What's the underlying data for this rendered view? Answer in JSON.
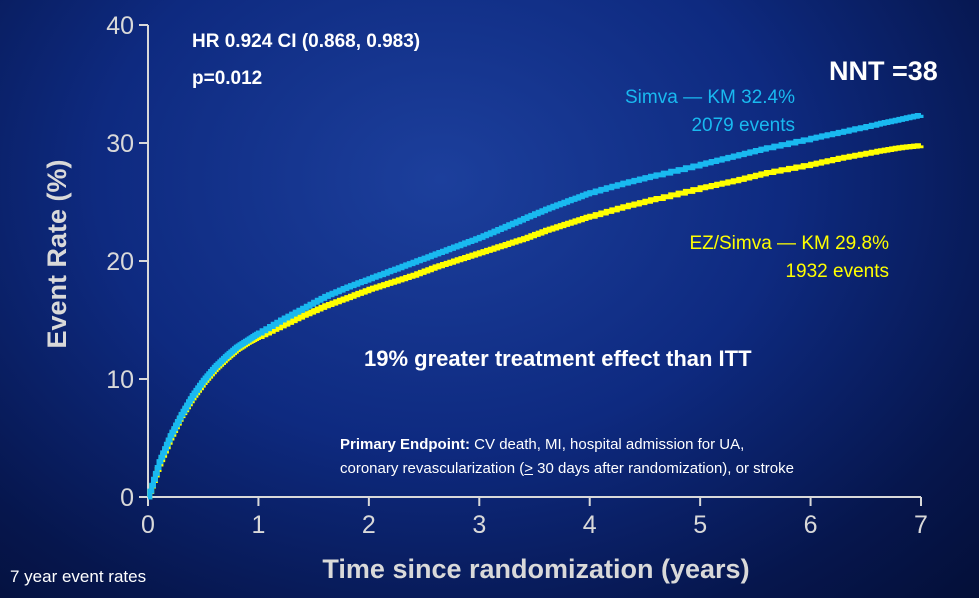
{
  "chart_data": {
    "type": "line",
    "title": "",
    "xlabel": "Time since randomization (years)",
    "ylabel": "Event Rate (%)",
    "xlim": [
      0,
      7
    ],
    "ylim": [
      0,
      40
    ],
    "xticks": [
      "0",
      "1",
      "2",
      "3",
      "4",
      "5",
      "6",
      "7"
    ],
    "yticks": [
      "0",
      "10",
      "20",
      "30",
      "40"
    ],
    "grid": false,
    "series": [
      {
        "name": "Simva",
        "color": "#19b9f0",
        "x": [
          0,
          0.1,
          0.2,
          0.3,
          0.4,
          0.5,
          0.6,
          0.7,
          0.8,
          0.9,
          1.0,
          1.2,
          1.4,
          1.6,
          1.8,
          2.0,
          2.2,
          2.4,
          2.6,
          2.8,
          3.0,
          3.2,
          3.4,
          3.6,
          3.8,
          4.0,
          4.3,
          4.6,
          5.0,
          5.3,
          5.6,
          6.0,
          6.3,
          6.6,
          6.8,
          7.0
        ],
        "y": [
          0,
          3.0,
          5.2,
          7.0,
          8.6,
          9.9,
          11.0,
          11.9,
          12.7,
          13.3,
          13.9,
          15.0,
          16.0,
          17.0,
          17.8,
          18.5,
          19.2,
          19.9,
          20.6,
          21.3,
          22.0,
          22.8,
          23.6,
          24.4,
          25.1,
          25.8,
          26.6,
          27.3,
          28.2,
          28.9,
          29.6,
          30.4,
          31.0,
          31.6,
          32.0,
          32.4
        ]
      },
      {
        "name": "EZ/Simva",
        "color": "#ffff00",
        "x": [
          0,
          0.1,
          0.2,
          0.3,
          0.4,
          0.5,
          0.6,
          0.7,
          0.8,
          0.9,
          1.0,
          1.2,
          1.4,
          1.6,
          1.8,
          2.0,
          2.2,
          2.4,
          2.6,
          2.8,
          3.0,
          3.2,
          3.4,
          3.6,
          3.8,
          4.0,
          4.3,
          4.6,
          5.0,
          5.3,
          5.6,
          6.0,
          6.3,
          6.6,
          6.8,
          7.0
        ],
        "y": [
          0,
          2.8,
          5.0,
          6.9,
          8.4,
          9.7,
          10.8,
          11.7,
          12.5,
          13.1,
          13.6,
          14.5,
          15.4,
          16.2,
          16.9,
          17.6,
          18.2,
          18.8,
          19.5,
          20.1,
          20.7,
          21.3,
          21.9,
          22.6,
          23.2,
          23.8,
          24.6,
          25.3,
          26.2,
          26.8,
          27.5,
          28.2,
          28.8,
          29.3,
          29.6,
          29.8
        ]
      }
    ],
    "annotations": {
      "hr": "HR 0.924 CI (0.868, 0.983)",
      "p": "p=0.012",
      "nnt": "NNT =38",
      "simva_line1": "Simva — KM 32.4%",
      "simva_line2": "2079 events",
      "ez_line1": "EZ/Simva — KM 29.8%",
      "ez_line2": "1932 events",
      "effect": "19% greater treatment effect than ITT",
      "endpoint_label": "Primary Endpoint:",
      "endpoint_text1": " CV death, MI, hospital admission for UA,",
      "endpoint_text2a": "coronary revascularization (",
      "endpoint_text2b": ">",
      "endpoint_text2c": " 30 days after randomization), or stroke",
      "footnote": "7 year event rates"
    }
  }
}
